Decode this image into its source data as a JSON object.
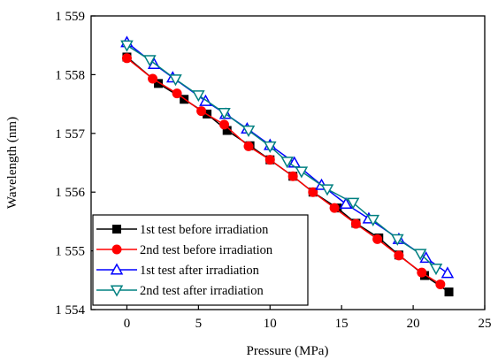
{
  "chart_data": {
    "type": "line",
    "xlabel": "Pressure (MPa)",
    "ylabel": "Wavelength (nm)",
    "xlim": [
      -2.5,
      25
    ],
    "ylim": [
      1554,
      1559
    ],
    "xticks": [
      0,
      5,
      10,
      15,
      20,
      25
    ],
    "xtick_labels": [
      "0",
      "5",
      "10",
      "15",
      "20",
      "25"
    ],
    "yticks": [
      1554,
      1555,
      1556,
      1557,
      1558,
      1559
    ],
    "ytick_labels": [
      "1 554",
      "1 555",
      "1 556",
      "1 557",
      "1 558",
      "1 559"
    ],
    "legend_position": "bottom-left",
    "grid": false,
    "series": [
      {
        "name": "1st test before irradiation",
        "marker": "square",
        "color": "#000000",
        "x": [
          0,
          2.2,
          4,
          5.6,
          7,
          8.6,
          10,
          11.6,
          13,
          14.7,
          16,
          17.6,
          19,
          20.8,
          22.5
        ],
        "y": [
          1558.3,
          1557.85,
          1557.58,
          1557.33,
          1557.05,
          1556.79,
          1556.55,
          1556.27,
          1556.0,
          1555.73,
          1555.47,
          1555.22,
          1554.93,
          1554.58,
          1554.3
        ]
      },
      {
        "name": "2nd test before irradiation",
        "marker": "circle",
        "color": "#ff0000",
        "x": [
          0,
          1.8,
          3.5,
          5.2,
          6.8,
          8.5,
          10,
          11.6,
          13,
          14.5,
          16,
          17.5,
          19,
          20.6,
          21.9
        ],
        "y": [
          1558.28,
          1557.93,
          1557.68,
          1557.38,
          1557.15,
          1556.78,
          1556.55,
          1556.27,
          1556.0,
          1555.73,
          1555.46,
          1555.2,
          1554.92,
          1554.63,
          1554.43
        ]
      },
      {
        "name": "1st test after irradiation",
        "marker": "triangle-up",
        "color": "#0000ff",
        "x": [
          0,
          1.9,
          3.2,
          5.5,
          6.9,
          8.4,
          10,
          11.7,
          13.6,
          15.3,
          16.9,
          19,
          20.9,
          22.4
        ],
        "y": [
          1558.55,
          1558.18,
          1557.95,
          1557.55,
          1557.33,
          1557.08,
          1556.8,
          1556.5,
          1556.12,
          1555.8,
          1555.55,
          1555.2,
          1554.88,
          1554.62
        ]
      },
      {
        "name": "2nd test after irradiation",
        "marker": "triangle-down",
        "color": "#008080",
        "x": [
          0,
          1.6,
          3.4,
          5,
          6.8,
          8.5,
          10,
          11.2,
          12.2,
          14,
          15.8,
          17.2,
          18.9,
          20.5,
          21.6
        ],
        "y": [
          1558.5,
          1558.25,
          1557.92,
          1557.65,
          1557.35,
          1557.05,
          1556.78,
          1556.52,
          1556.35,
          1556.05,
          1555.82,
          1555.53,
          1555.2,
          1554.95,
          1554.7
        ]
      }
    ]
  }
}
